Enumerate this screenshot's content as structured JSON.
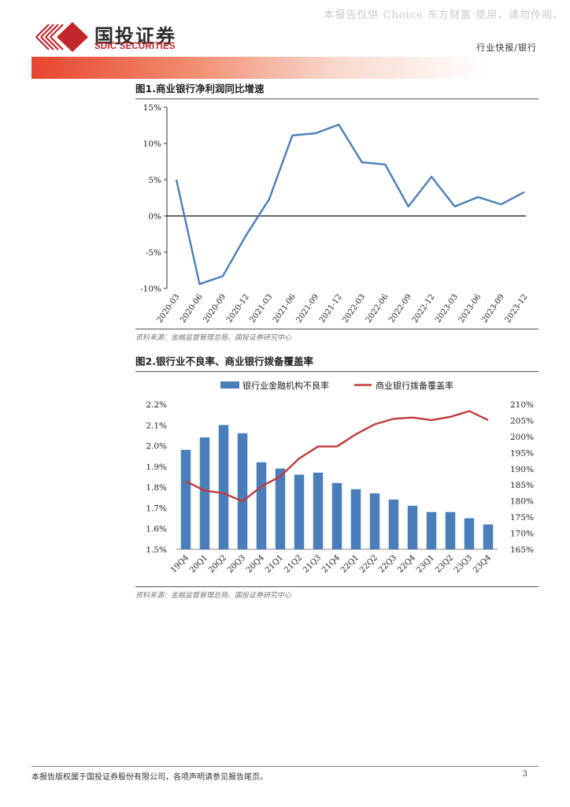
{
  "watermark": "本报告仅供 Choice 东方财富 使用，请勿传阅。",
  "brand": {
    "name_cn": "国投证券",
    "name_en": "SDIC SECURITIES",
    "logo_color": "#c1272d"
  },
  "header": {
    "doc_type": "行业快报/银行"
  },
  "figure1": {
    "title": "图1.商业银行净利润同比增速",
    "source": "资料来源：金融监督管理总局、国投证券研究中心"
  },
  "figure2": {
    "title": "图2.银行业不良率、商业银行拨备覆盖率",
    "source": "资料来源：金融监督管理总局、国投证券研究中心"
  },
  "footer": {
    "disclaimer": "本报告版权属于国投证券股份有限公司，各项声明请参见报告尾页。",
    "page_number": "3"
  },
  "chart_data": [
    {
      "type": "line",
      "title": "图1.商业银行净利润同比增速",
      "categories": [
        "2020-03",
        "2020-06",
        "2020-09",
        "2020-12",
        "2021-03",
        "2021-06",
        "2021-09",
        "2021-12",
        "2022-03",
        "2022-06",
        "2022-09",
        "2022-12",
        "2023-03",
        "2023-06",
        "2023-09",
        "2023-12"
      ],
      "series": [
        {
          "name": "商业银行净利润同比增速",
          "values": [
            5.0,
            -9.4,
            -8.3,
            -2.7,
            2.3,
            11.1,
            11.4,
            12.6,
            7.4,
            7.1,
            1.3,
            5.4,
            1.3,
            2.6,
            1.6,
            3.3
          ],
          "color": "#4a7ebb"
        }
      ],
      "ylim": [
        -10,
        15
      ],
      "yticks": [
        15,
        10,
        5,
        0,
        -5,
        -10
      ],
      "ytick_labels": [
        "15%",
        "10%",
        "5%",
        "0%",
        "-5%",
        "-10%"
      ],
      "grid": false,
      "xlabel": "",
      "ylabel": ""
    },
    {
      "type": "bar+line",
      "title": "图2.银行业不良率、商业银行拨备覆盖率",
      "categories": [
        "19Q4",
        "20Q1",
        "20Q2",
        "20Q3",
        "20Q4",
        "21Q1",
        "21Q2",
        "21Q3",
        "21Q4",
        "22Q1",
        "22Q2",
        "22Q3",
        "22Q4",
        "23Q1",
        "23Q2",
        "23Q3",
        "23Q4"
      ],
      "series": [
        {
          "name": "银行业金融机构不良率",
          "kind": "bar",
          "axis": "left",
          "color": "#4a7ebb",
          "values": [
            1.98,
            2.04,
            2.1,
            2.06,
            1.92,
            1.89,
            1.86,
            1.87,
            1.82,
            1.79,
            1.77,
            1.74,
            1.71,
            1.68,
            1.68,
            1.65,
            1.62
          ]
        },
        {
          "name": "商业银行拨备覆盖率",
          "kind": "line",
          "axis": "right",
          "color": "#c0393b",
          "values": [
            186.1,
            183.2,
            182.4,
            179.9,
            184.5,
            187.6,
            193.2,
            196.9,
            196.9,
            200.7,
            203.8,
            205.5,
            205.9,
            205.1,
            206.1,
            207.9,
            205.1
          ]
        }
      ],
      "ylim_left": [
        1.5,
        2.2
      ],
      "yticks_left": [
        "2.2%",
        "2.1%",
        "2.0%",
        "1.9%",
        "1.8%",
        "1.7%",
        "1.6%",
        "1.5%"
      ],
      "ylim_right": [
        165,
        210
      ],
      "yticks_right": [
        "210%",
        "205%",
        "200%",
        "195%",
        "190%",
        "185%",
        "180%",
        "175%",
        "170%",
        "165%"
      ],
      "legend": "top-center",
      "grid": false
    }
  ]
}
